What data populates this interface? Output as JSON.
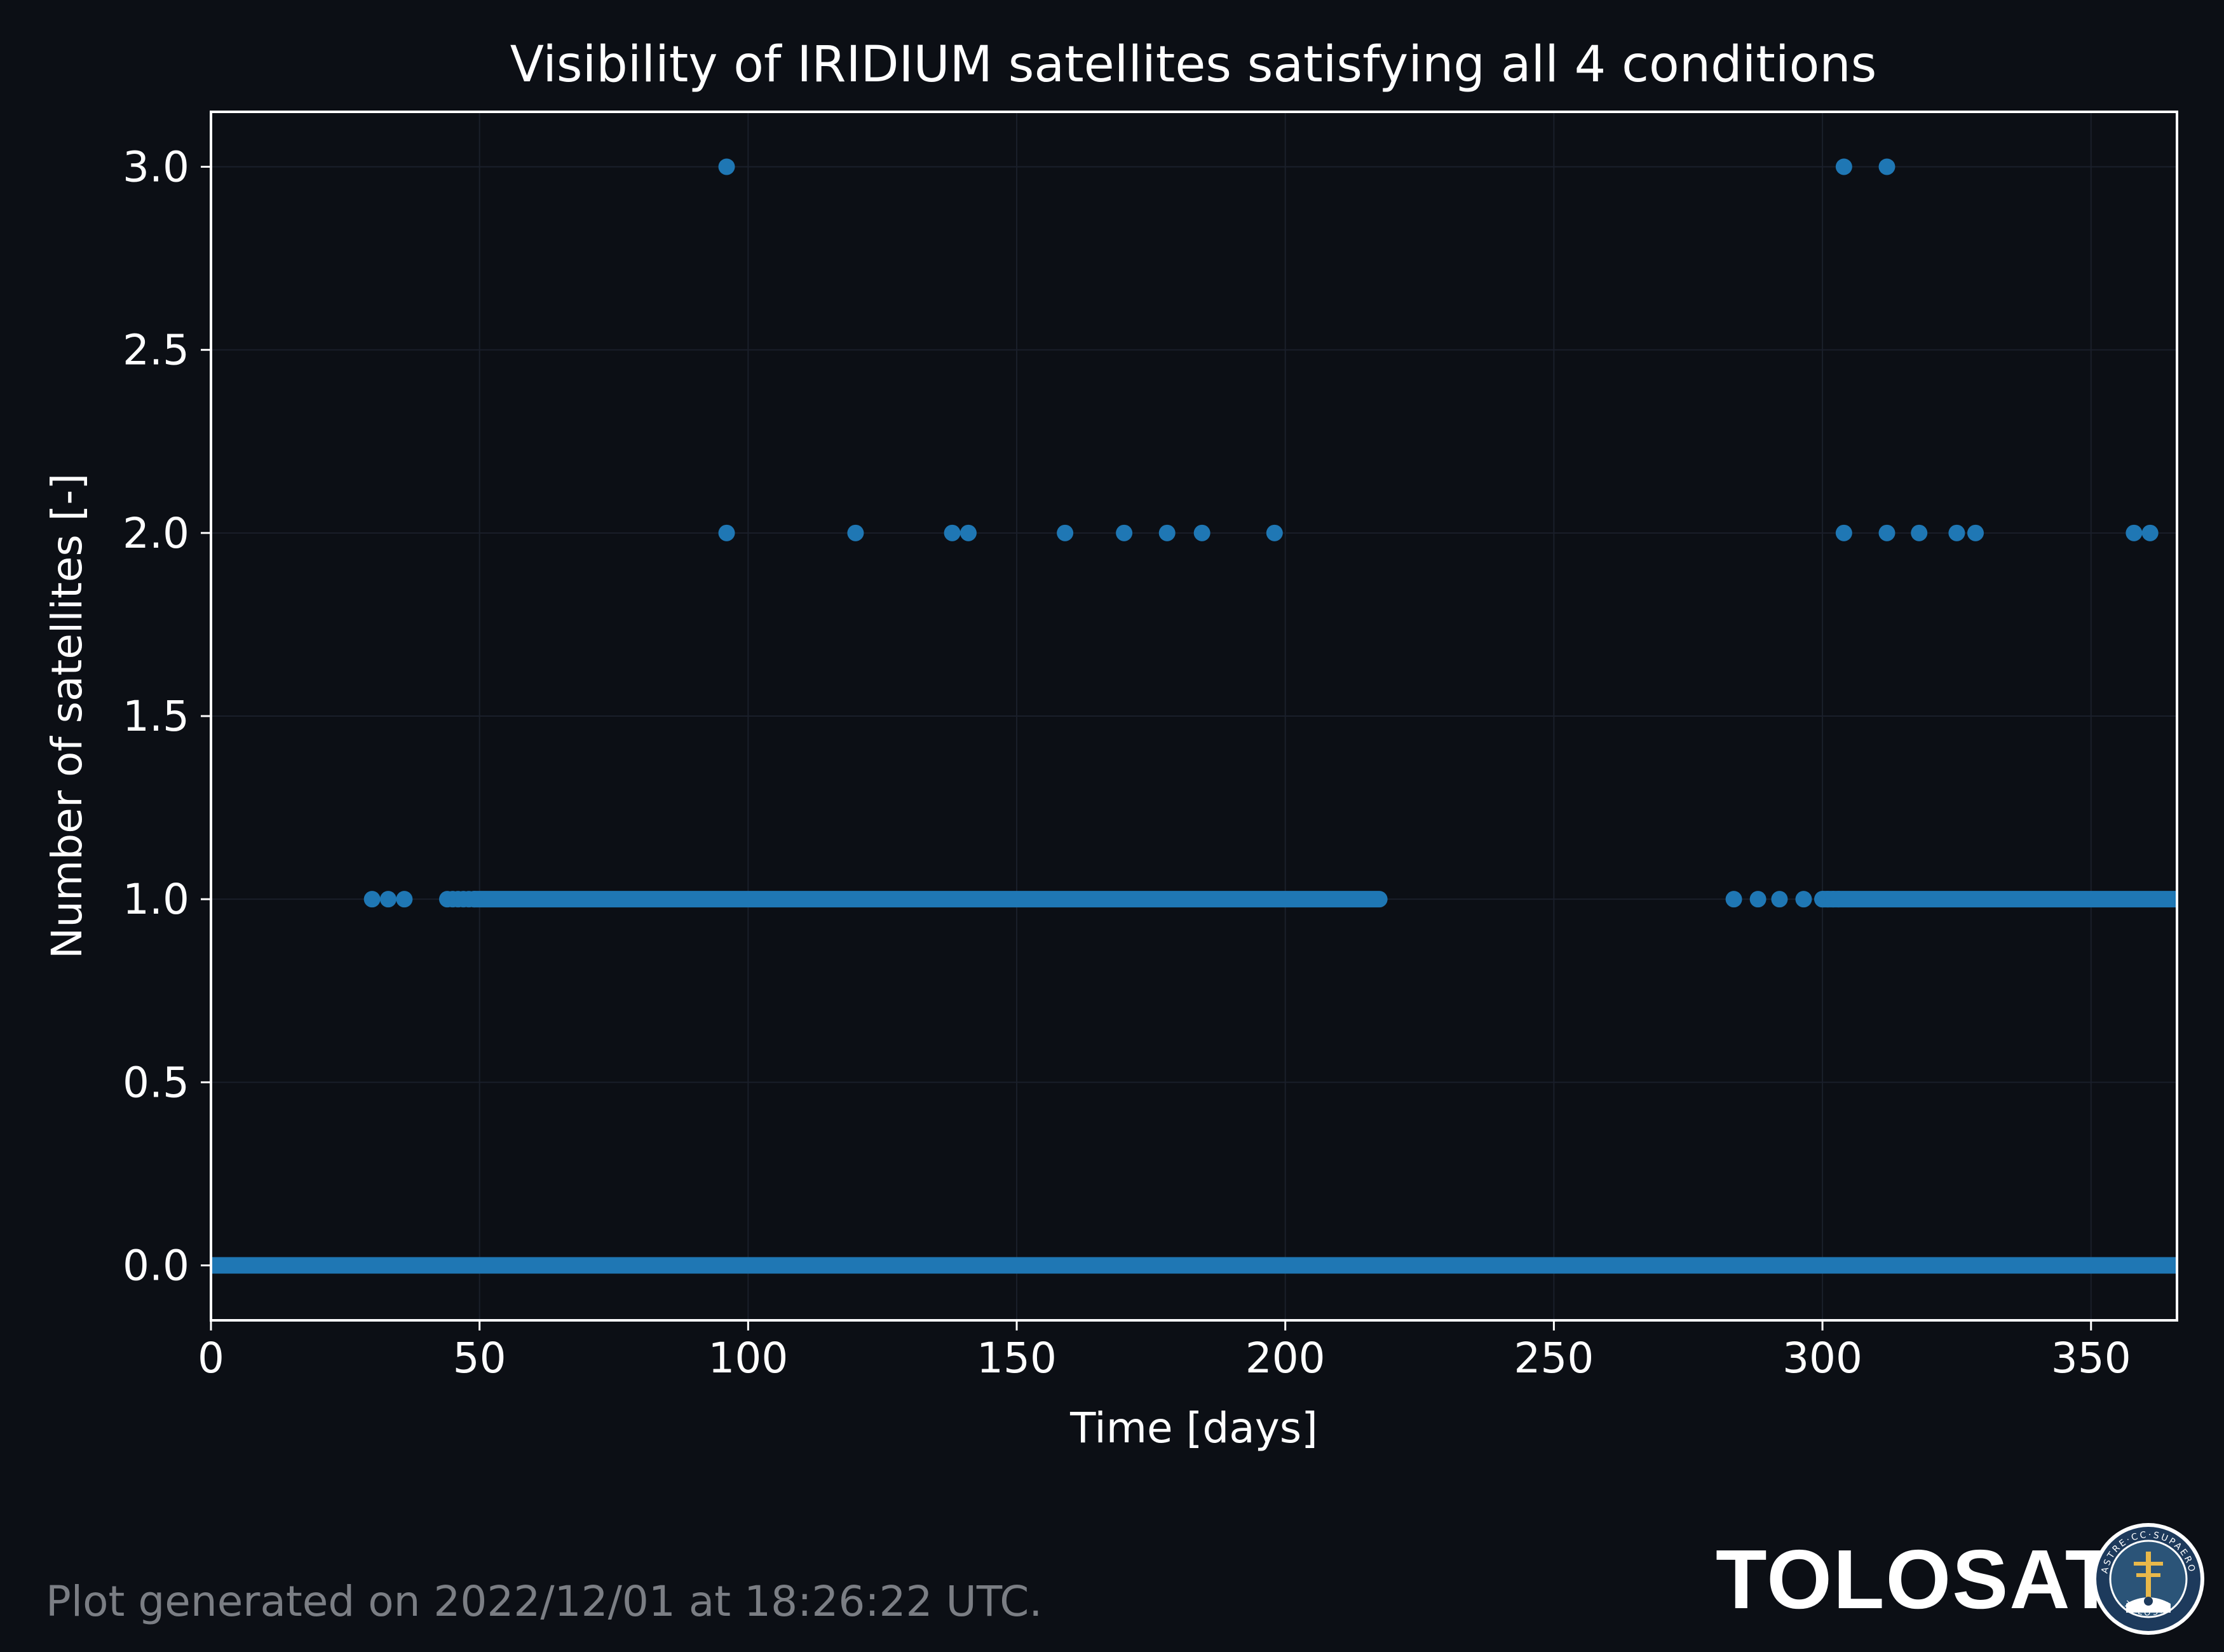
{
  "colors": {
    "background": "#0c0f15",
    "series": "#1f77b4",
    "text": "#ffffff",
    "muted": "#7b7e84",
    "grid": "#1a1f2a"
  },
  "chart_data": {
    "type": "scatter",
    "title": "Visibility of IRIDIUM satellites satisfying all 4 conditions",
    "xlabel": "Time [days]",
    "ylabel": "Number of satellites [-]",
    "xlim": [
      0,
      366
    ],
    "ylim": [
      -0.15,
      3.15
    ],
    "grid": true,
    "xticks": [
      0,
      50,
      100,
      150,
      200,
      250,
      300,
      350
    ],
    "xtick_labels": [
      "0",
      "50",
      "100",
      "150",
      "200",
      "250",
      "300",
      "350"
    ],
    "yticks": [
      0.0,
      0.5,
      1.0,
      1.5,
      2.0,
      2.5,
      3.0
    ],
    "ytick_labels": [
      "0.0",
      "0.5",
      "1.0",
      "1.5",
      "2.0",
      "2.5",
      "3.0"
    ],
    "series": [
      {
        "points": [
          [
            96,
            3
          ],
          [
            304,
            3
          ],
          [
            312,
            3
          ],
          [
            96,
            2
          ],
          [
            120,
            2
          ],
          [
            138,
            2
          ],
          [
            141,
            2
          ],
          [
            159,
            2
          ],
          [
            170,
            2
          ],
          [
            178,
            2
          ],
          [
            184.5,
            2
          ],
          [
            198,
            2
          ],
          [
            304,
            2
          ],
          [
            312,
            2
          ],
          [
            318,
            2
          ],
          [
            325,
            2
          ],
          [
            328.5,
            2
          ],
          [
            358,
            2
          ],
          [
            361,
            2
          ],
          [
            30,
            1
          ],
          [
            33,
            1
          ],
          [
            36,
            1
          ],
          [
            44,
            1
          ],
          [
            45,
            1
          ],
          [
            46,
            1
          ],
          [
            47,
            1
          ],
          [
            48,
            1
          ],
          [
            49,
            1
          ],
          [
            283.5,
            1
          ],
          [
            288,
            1
          ],
          [
            292,
            1
          ],
          [
            296.5,
            1
          ],
          [
            300,
            1
          ],
          [
            301,
            1
          ],
          [
            302,
            1
          ],
          [
            303,
            1
          ]
        ],
        "dense_ranges": [
          {
            "y": 0,
            "x_from": 0,
            "x_to": 366
          },
          {
            "y": 1,
            "x_from": 49,
            "x_to": 217.5
          },
          {
            "y": 1,
            "x_from": 300,
            "x_to": 366
          }
        ]
      }
    ]
  },
  "footer": {
    "note": "Plot generated on 2022/12/01 at 18:26:22 UTC.",
    "brand": "TOLOSAT",
    "logo_text": "ASTRE·CC·SUPAERO TOLOSAT"
  }
}
